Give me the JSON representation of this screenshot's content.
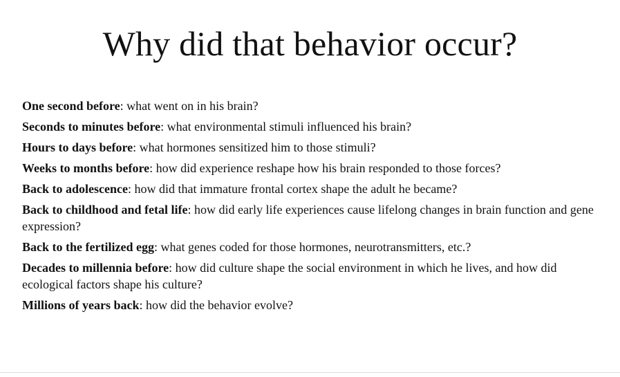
{
  "slide": {
    "title": "Why did that behavior occur?",
    "items": [
      {
        "head": "One second before",
        "text": ":  what went on in his brain?"
      },
      {
        "head": "Seconds to minutes before",
        "text": ": what environmental stimuli influenced his brain?"
      },
      {
        "head": "Hours to days before",
        "text": ": what hormones sensitized him to those stimuli?"
      },
      {
        "head": "Weeks to months before",
        "text": ": how did experience reshape how his brain responded to those forces?"
      },
      {
        "head": "Back to adolescence",
        "text": ": how did that immature frontal cortex shape the adult he became?"
      },
      {
        "head": "Back to childhood and fetal life",
        "text": ": how did early life experiences cause lifelong changes in brain function and gene expression?"
      },
      {
        "head": "Back to the fertilized egg",
        "text": ": what genes coded for those hormones, neurotransmitters, etc.?"
      },
      {
        "head": "Decades to millennia before",
        "text": ": how did culture shape the social environment in which he lives, and how did ecological factors shape his culture?"
      },
      {
        "head": "Millions of years back",
        "text": ": how did the behavior evolve?"
      }
    ]
  }
}
